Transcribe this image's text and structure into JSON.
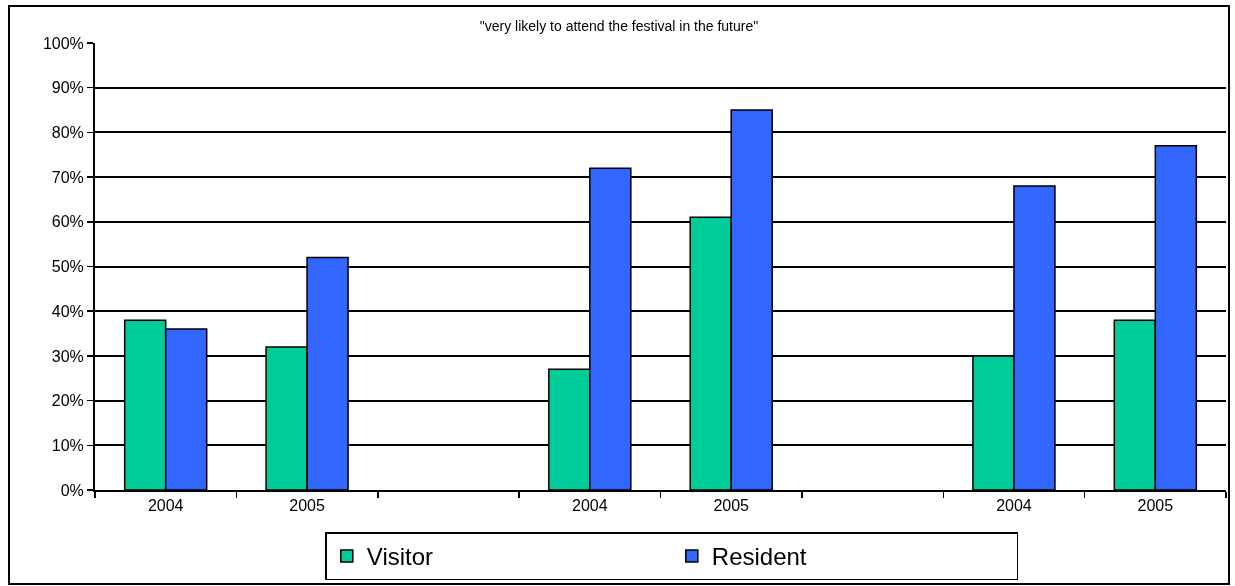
{
  "chart_data": {
    "type": "bar",
    "title": "\"very likely to attend the festival in the future\"",
    "categories": [
      "2004",
      "2005",
      null,
      "2004",
      "2005",
      null,
      "2004",
      "2005"
    ],
    "series": [
      {
        "name": "Visitor",
        "color": "#00cc99",
        "values": [
          38,
          32,
          null,
          27,
          61,
          null,
          30,
          38
        ]
      },
      {
        "name": "Resident",
        "color": "#3366ff",
        "values": [
          36,
          52,
          null,
          72,
          85,
          null,
          68,
          77
        ]
      }
    ],
    "ylim": [
      0,
      100
    ],
    "yticks": [
      {
        "value": 0,
        "label": "0%"
      },
      {
        "value": 10,
        "label": "10%"
      },
      {
        "value": 20,
        "label": "20%"
      },
      {
        "value": 30,
        "label": "30%"
      },
      {
        "value": 40,
        "label": "40%"
      },
      {
        "value": 50,
        "label": "50%"
      },
      {
        "value": 60,
        "label": "60%"
      },
      {
        "value": 70,
        "label": "70%"
      },
      {
        "value": 80,
        "label": "80%"
      },
      {
        "value": 90,
        "label": "90%"
      },
      {
        "value": 100,
        "label": "100%"
      }
    ],
    "grid": "y",
    "legend": "bottom"
  }
}
